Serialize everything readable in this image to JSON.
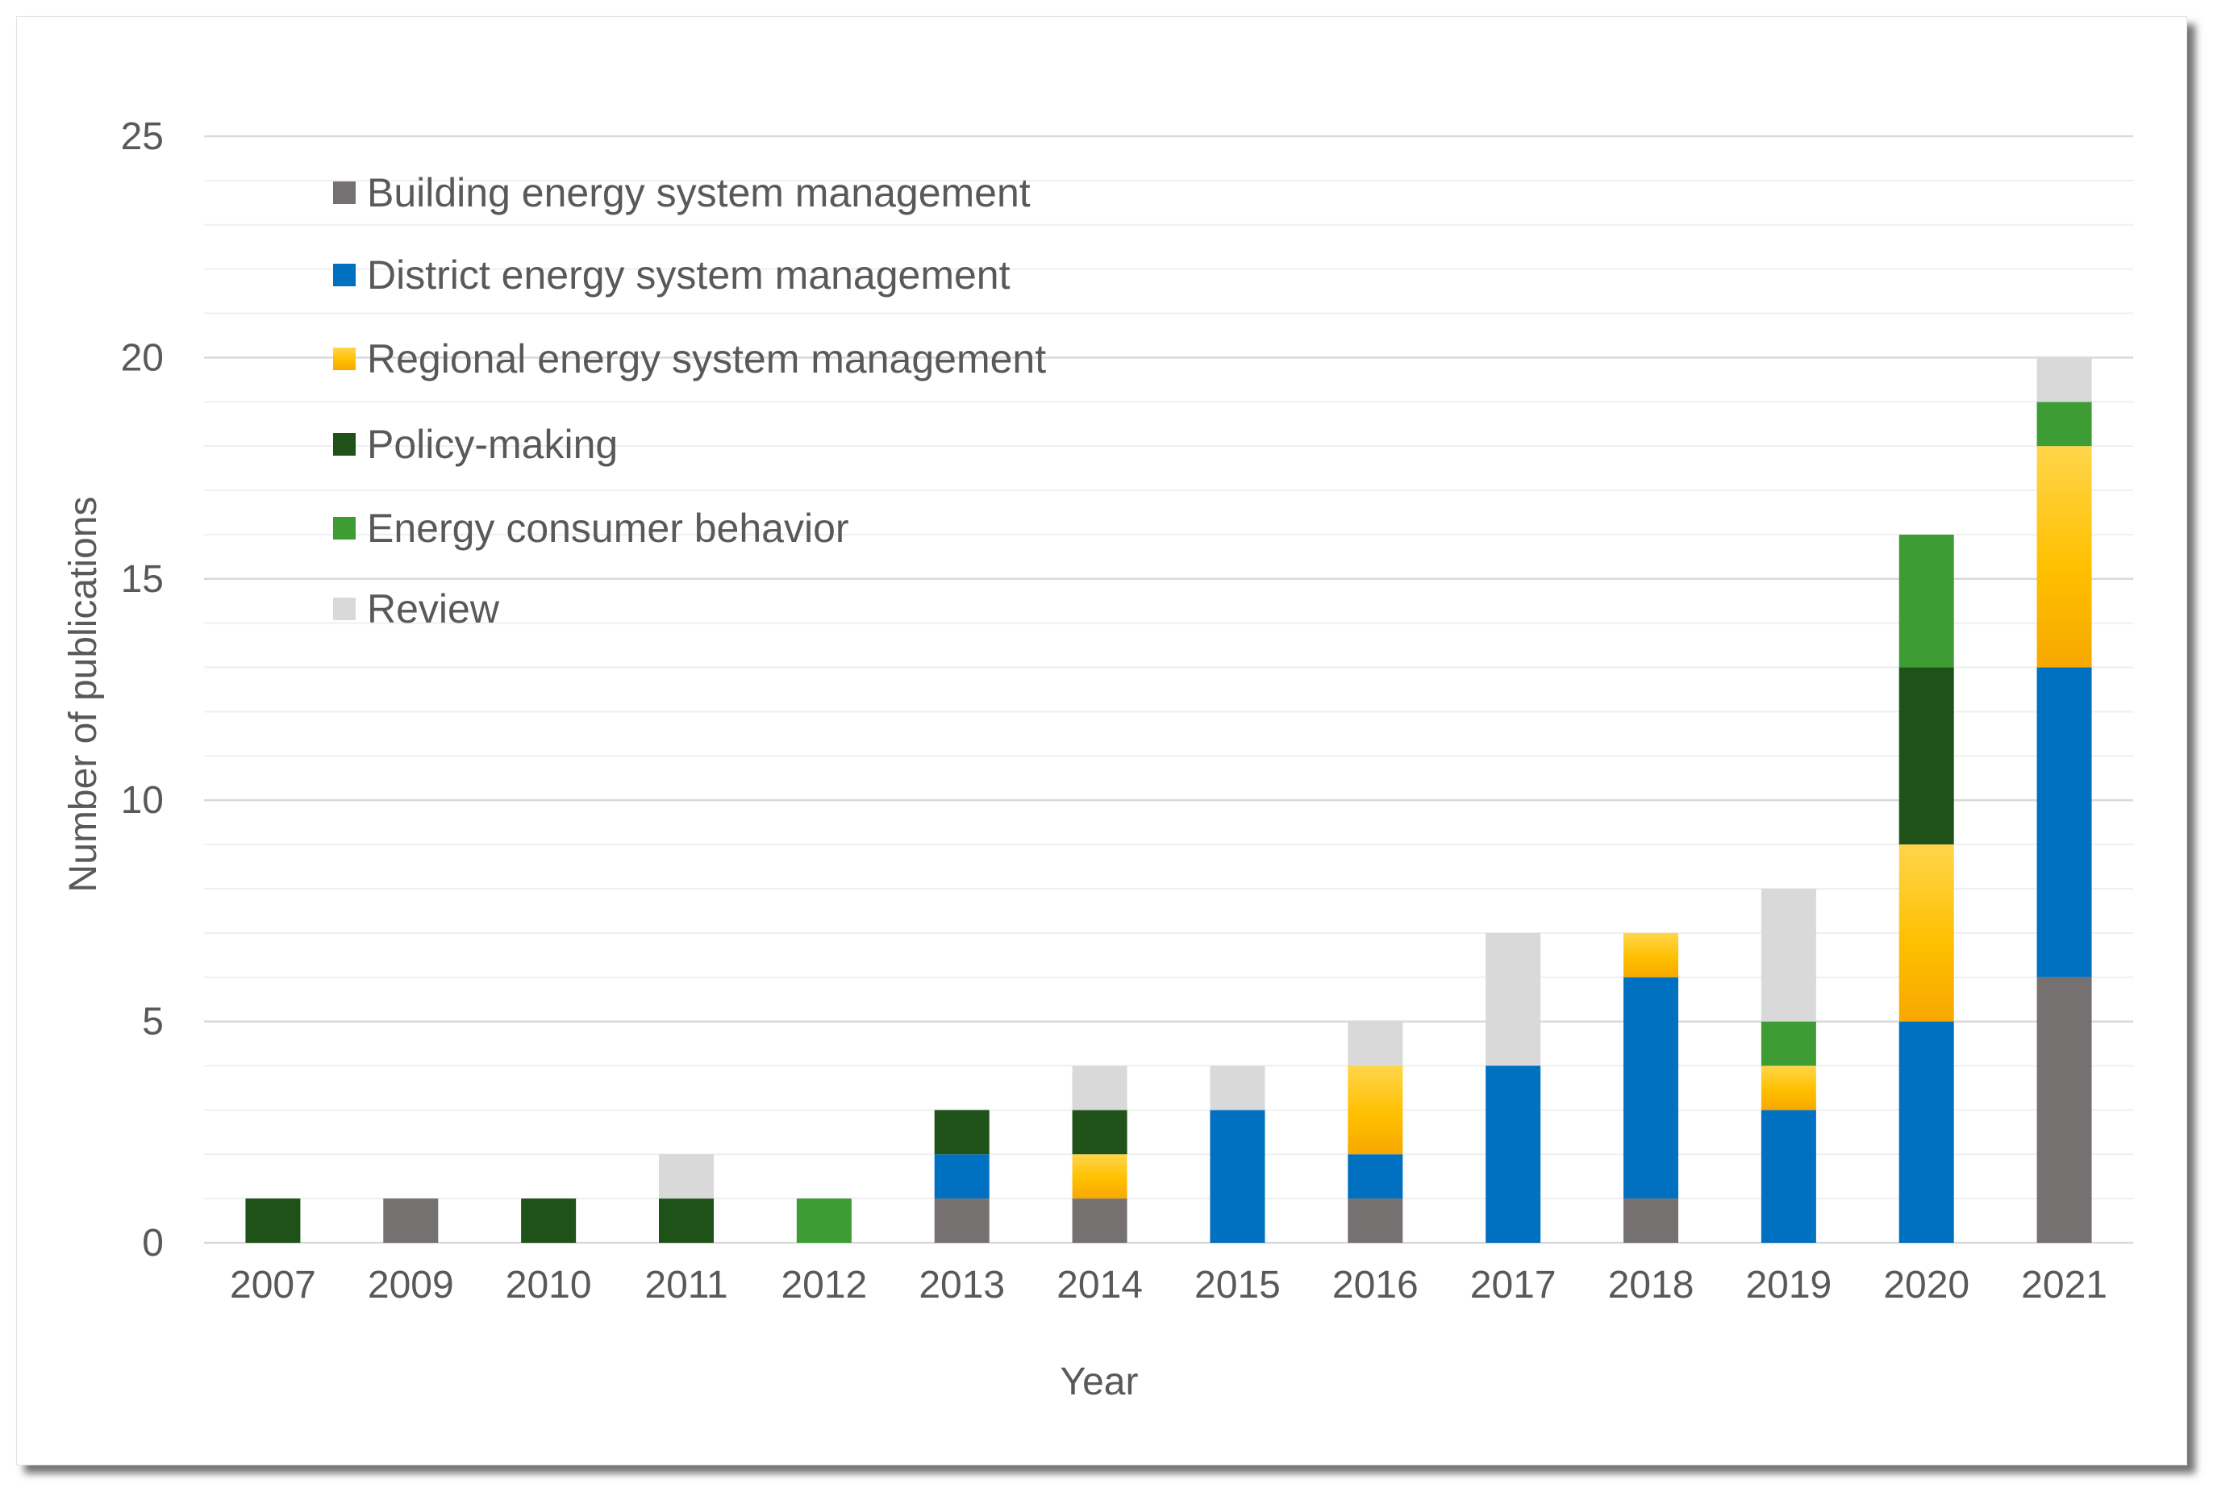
{
  "chart_data": {
    "type": "bar",
    "stacked": true,
    "title": "",
    "xlabel": "Year",
    "ylabel": "Number of publications",
    "ylim": [
      0,
      25
    ],
    "major_ticks": [
      0,
      5,
      10,
      15,
      20,
      25
    ],
    "minor_tick_step": 1,
    "grid": true,
    "legend_position": "top-left",
    "categories": [
      "2007",
      "2009",
      "2010",
      "2011",
      "2012",
      "2013",
      "2014",
      "2015",
      "2016",
      "2017",
      "2018",
      "2019",
      "2020",
      "2021"
    ],
    "series": [
      {
        "name": "Building energy system management",
        "color": "#767171",
        "values": [
          0,
          1,
          0,
          0,
          0,
          1,
          1,
          0,
          1,
          0,
          1,
          0,
          0,
          6
        ]
      },
      {
        "name": "District energy system management",
        "color": "#0070C0",
        "values": [
          0,
          0,
          0,
          0,
          0,
          1,
          0,
          3,
          1,
          4,
          5,
          3,
          5,
          7
        ]
      },
      {
        "name": "Regional energy system management",
        "color": "#FFC000",
        "values": [
          0,
          0,
          0,
          0,
          0,
          0,
          1,
          0,
          2,
          0,
          1,
          1,
          4,
          5
        ]
      },
      {
        "name": "Policy-making",
        "color": "#1E5218",
        "values": [
          1,
          0,
          1,
          1,
          0,
          1,
          1,
          0,
          0,
          0,
          0,
          0,
          4,
          0
        ]
      },
      {
        "name": "Energy consumer behavior",
        "color": "#3E9C35",
        "values": [
          0,
          0,
          0,
          0,
          1,
          0,
          0,
          0,
          0,
          0,
          0,
          1,
          3,
          1
        ]
      },
      {
        "name": "Review",
        "color": "#D9D9D9",
        "values": [
          0,
          0,
          0,
          1,
          0,
          0,
          1,
          1,
          1,
          3,
          0,
          3,
          0,
          1
        ]
      }
    ]
  }
}
